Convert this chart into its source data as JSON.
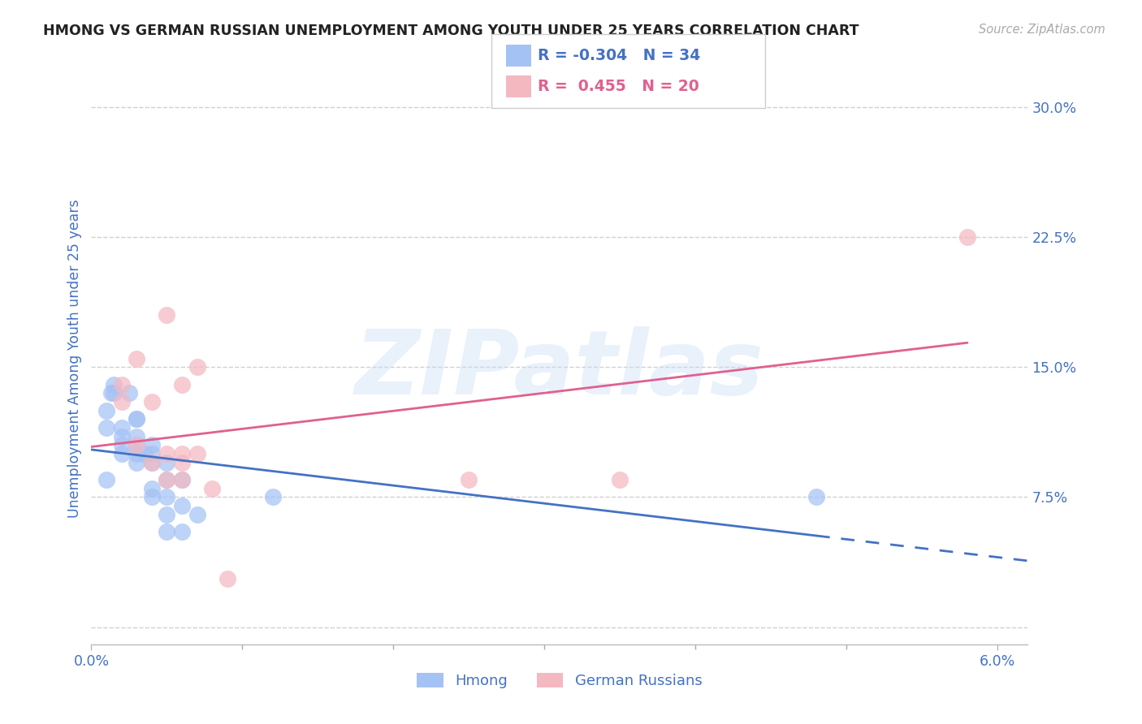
{
  "title": "HMONG VS GERMAN RUSSIAN UNEMPLOYMENT AMONG YOUTH UNDER 25 YEARS CORRELATION CHART",
  "source": "Source: ZipAtlas.com",
  "ylabel": "Unemployment Among Youth under 25 years",
  "xlim": [
    0.0,
    0.062
  ],
  "ylim": [
    -0.01,
    0.32
  ],
  "xticks": [
    0.0,
    0.06
  ],
  "xticklabels": [
    "0.0%",
    "6.0%"
  ],
  "yticks": [
    0.0,
    0.075,
    0.15,
    0.225,
    0.3
  ],
  "yticklabels": [
    "",
    "7.5%",
    "15.0%",
    "22.5%",
    "30.0%"
  ],
  "hmong_R": -0.304,
  "hmong_N": 34,
  "german_R": 0.455,
  "german_N": 20,
  "hmong_color": "#a4c2f4",
  "german_color": "#f4b8c1",
  "hmong_line_color": "#4472c4",
  "german_line_color": "#e06090",
  "axis_color": "#4472c4",
  "grid_color": "#d0d0d0",
  "watermark": "ZIPatlas",
  "hmong_x": [
    0.001,
    0.001,
    0.001,
    0.0013,
    0.0015,
    0.0015,
    0.002,
    0.002,
    0.002,
    0.002,
    0.0025,
    0.003,
    0.003,
    0.003,
    0.003,
    0.003,
    0.003,
    0.0035,
    0.004,
    0.004,
    0.004,
    0.004,
    0.004,
    0.005,
    0.005,
    0.005,
    0.005,
    0.005,
    0.006,
    0.006,
    0.006,
    0.007,
    0.012,
    0.048
  ],
  "hmong_y": [
    0.085,
    0.115,
    0.125,
    0.135,
    0.135,
    0.14,
    0.1,
    0.105,
    0.11,
    0.115,
    0.135,
    0.095,
    0.1,
    0.105,
    0.11,
    0.12,
    0.12,
    0.1,
    0.075,
    0.08,
    0.095,
    0.1,
    0.105,
    0.055,
    0.065,
    0.075,
    0.085,
    0.095,
    0.055,
    0.07,
    0.085,
    0.065,
    0.075,
    0.075
  ],
  "german_x": [
    0.002,
    0.002,
    0.003,
    0.003,
    0.004,
    0.004,
    0.005,
    0.005,
    0.005,
    0.006,
    0.006,
    0.006,
    0.006,
    0.007,
    0.007,
    0.008,
    0.009,
    0.025,
    0.035,
    0.058
  ],
  "german_y": [
    0.13,
    0.14,
    0.105,
    0.155,
    0.095,
    0.13,
    0.085,
    0.1,
    0.18,
    0.085,
    0.095,
    0.1,
    0.14,
    0.1,
    0.15,
    0.08,
    0.028,
    0.085,
    0.085,
    0.225
  ]
}
